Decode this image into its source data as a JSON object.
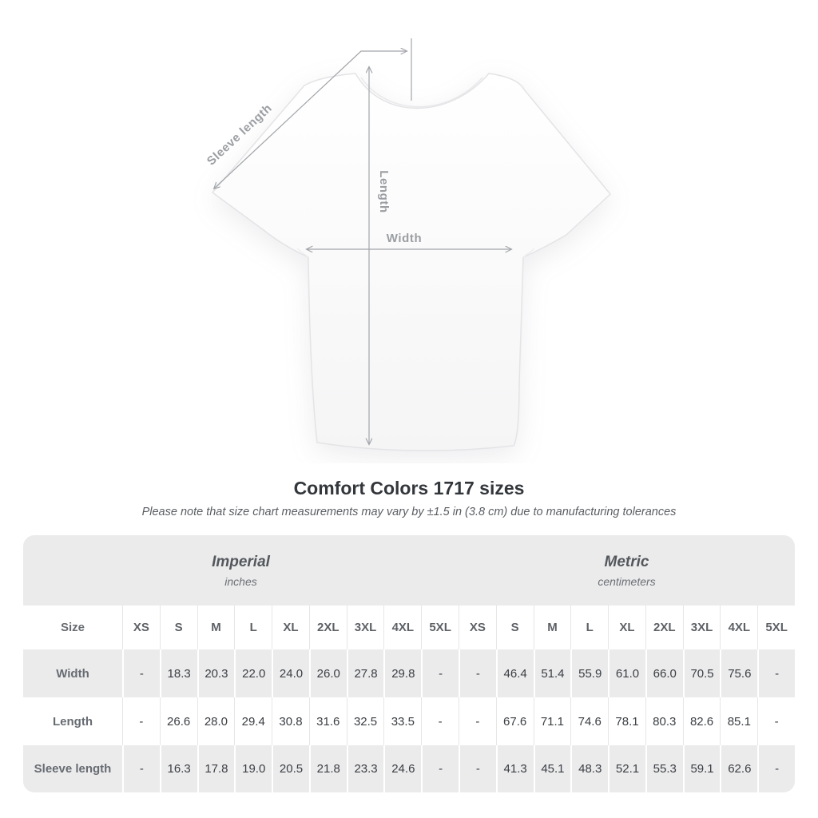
{
  "diagram": {
    "labels": {
      "sleeve_length": "Sleeve length",
      "length": "Length",
      "width": "Width"
    }
  },
  "title": "Comfort Colors 1717 sizes",
  "subtitle": "Please note that size chart measurements may vary by ±1.5 in (3.8 cm) due to manufacturing tolerances",
  "table": {
    "groups": [
      {
        "name": "Imperial",
        "unit": "inches"
      },
      {
        "name": "Metric",
        "unit": "centimeters"
      }
    ],
    "size_label": "Size",
    "columns": [
      "XS",
      "S",
      "M",
      "L",
      "XL",
      "2XL",
      "3XL",
      "4XL",
      "5XL",
      "XS",
      "S",
      "M",
      "L",
      "XL",
      "2XL",
      "3XL",
      "4XL",
      "5XL"
    ],
    "rows": [
      {
        "label": "Width",
        "values": [
          "-",
          "18.3",
          "20.3",
          "22.0",
          "24.0",
          "26.0",
          "27.8",
          "29.8",
          "-",
          "-",
          "46.4",
          "51.4",
          "55.9",
          "61.0",
          "66.0",
          "70.5",
          "75.6",
          "-"
        ]
      },
      {
        "label": "Length",
        "values": [
          "-",
          "26.6",
          "28.0",
          "29.4",
          "30.8",
          "31.6",
          "32.5",
          "33.5",
          "-",
          "-",
          "67.6",
          "71.1",
          "74.6",
          "78.1",
          "80.3",
          "82.6",
          "85.1",
          "-"
        ]
      },
      {
        "label": "Sleeve length",
        "values": [
          "-",
          "16.3",
          "17.8",
          "19.0",
          "20.5",
          "21.8",
          "23.3",
          "24.6",
          "-",
          "-",
          "41.3",
          "45.1",
          "48.3",
          "52.1",
          "55.3",
          "59.1",
          "62.6",
          "-"
        ]
      }
    ]
  },
  "colors": {
    "table_gray": "#ebebec",
    "annotation_gray": "#9b9ea2",
    "value_text": "#3a3e43",
    "title_text": "#33373b"
  }
}
